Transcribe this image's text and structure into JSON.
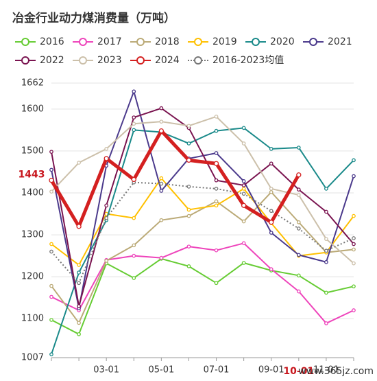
{
  "chart_data": {
    "type": "line",
    "title": "冶金行业动力煤消费量（万吨）",
    "categories": [
      null,
      null,
      "03-01",
      null,
      "05-01",
      null,
      "07-01",
      null,
      "09-01",
      null,
      "11-01",
      null
    ],
    "ylim": [
      1007,
      1662
    ],
    "yticks": [
      1007,
      1100,
      1200,
      1300,
      1400,
      1500,
      1600,
      1662
    ],
    "grid": true,
    "series": [
      {
        "name": "2016",
        "color": "#66cc33",
        "values": [
          1097,
          1063,
          1232,
          1197,
          1243,
          1225,
          1185,
          1233,
          1215,
          1203,
          1162,
          1177
        ]
      },
      {
        "name": "2017",
        "color": "#ee44bb",
        "values": [
          1152,
          1120,
          1240,
          1250,
          1245,
          1272,
          1263,
          1280,
          1218,
          1165,
          1089,
          1120
        ]
      },
      {
        "name": "2018",
        "color": "#bbaa77",
        "values": [
          1178,
          1090,
          1238,
          1275,
          1335,
          1345,
          1380,
          1332,
          1402,
          1330,
          1258,
          1265
        ]
      },
      {
        "name": "2019",
        "color": "#ffc000",
        "values": [
          1278,
          1228,
          1350,
          1340,
          1435,
          1360,
          1370,
          1410,
          1328,
          1250,
          1258,
          1345
        ]
      },
      {
        "name": "2020",
        "color": "#1a8a8a",
        "values": [
          1015,
          1210,
          1335,
          1550,
          1545,
          1518,
          1548,
          1555,
          1505,
          1508,
          1410,
          1478
        ]
      },
      {
        "name": "2021",
        "color": "#4b3a8c",
        "values": [
          1455,
          1125,
          1465,
          1642,
          1405,
          1482,
          1495,
          1428,
          1305,
          1252,
          1235,
          1440
        ]
      },
      {
        "name": "2022",
        "color": "#7a1450",
        "values": [
          1498,
          1130,
          1370,
          1580,
          1602,
          1555,
          1430,
          1418,
          1470,
          1408,
          1355,
          1278
        ]
      },
      {
        "name": "2023",
        "color": "#ccc0aa",
        "values": [
          1403,
          1472,
          1505,
          1565,
          1570,
          1560,
          1582,
          1518,
          1410,
          1395,
          1290,
          1232
        ]
      },
      {
        "name": "2024",
        "color": "#d42020",
        "width": 5,
        "values": [
          1430,
          1320,
          1482,
          1432,
          1548,
          1478,
          1470,
          1370,
          1330,
          1443,
          null,
          null
        ]
      },
      {
        "name": "2016-2023均值",
        "color": "#777777",
        "dashed": true,
        "values": [
          1260,
          1185,
          1340,
          1425,
          1422,
          1415,
          1410,
          1398,
          1357,
          1315,
          1262,
          1292
        ]
      }
    ],
    "highlight_y": {
      "value": 1443,
      "label": "1443"
    },
    "highlight_x": {
      "index": 9,
      "label": "10-01"
    },
    "watermark": "www.365jz.com"
  }
}
